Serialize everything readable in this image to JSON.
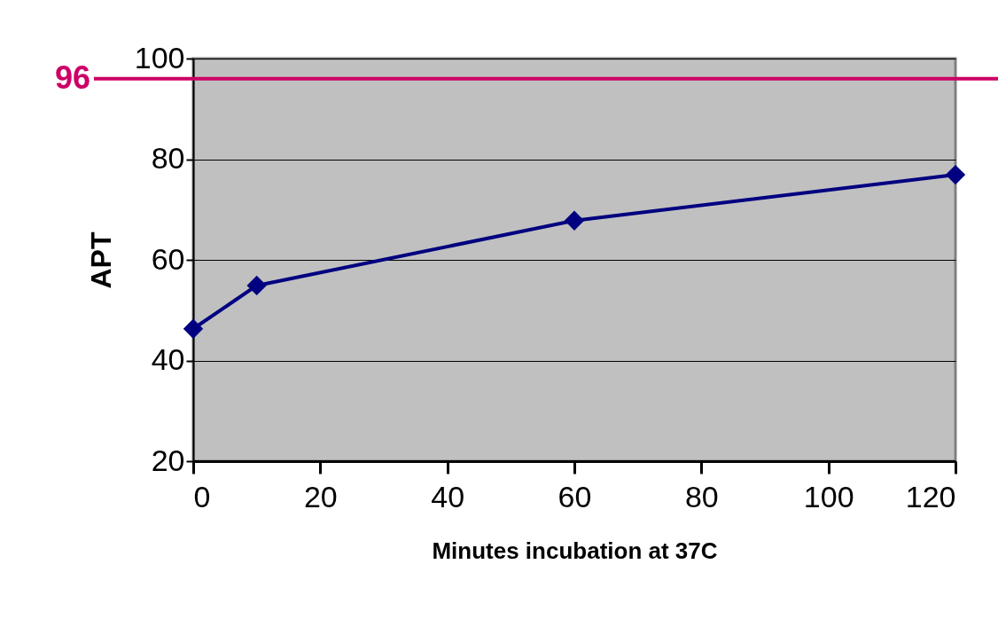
{
  "chart_data": {
    "type": "line",
    "xlabel": "Minutes incubation at 37C",
    "ylabel": "APT",
    "x": [
      0,
      10,
      60,
      120
    ],
    "series": [
      {
        "color": "#000080",
        "values": [
          46.3,
          54.9,
          67.8,
          76.9
        ]
      }
    ],
    "xlim": [
      0,
      120
    ],
    "xticks": [
      0,
      20,
      40,
      60,
      80,
      100,
      120
    ],
    "ylim": [
      20,
      100
    ],
    "yticks": [
      20,
      40,
      60,
      80,
      100
    ],
    "grid": "y",
    "marker": "diamond",
    "line_style": "solid",
    "ref_lines": [
      {
        "axis": "y",
        "value": 96,
        "label": "96",
        "color": "#cc0066"
      }
    ]
  }
}
